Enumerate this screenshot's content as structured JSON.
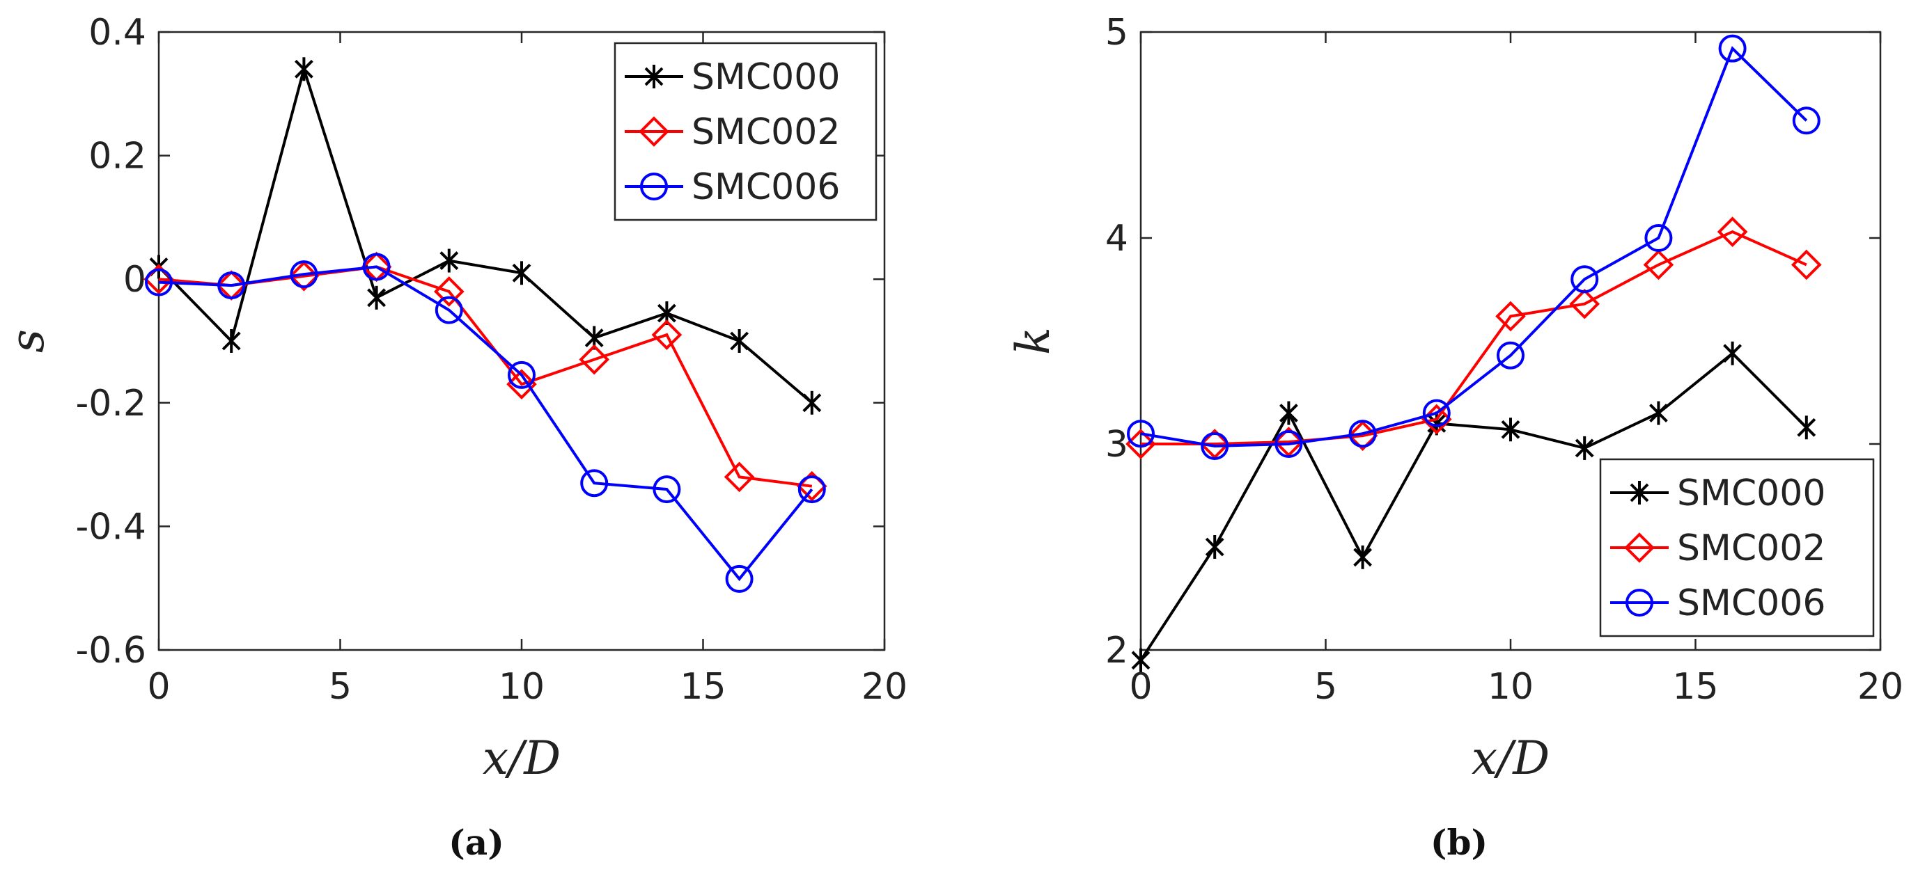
{
  "chart_data": [
    {
      "type": "line",
      "xlabel": "x/D",
      "ylabel": "s",
      "caption": "(a)",
      "xlim": [
        0,
        20
      ],
      "ylim": [
        -0.6,
        0.4
      ],
      "xticks": [
        0,
        5,
        10,
        15,
        20
      ],
      "xtick_labels": [
        "0",
        "5",
        "10",
        "15",
        "20"
      ],
      "yticks": [
        -0.6,
        -0.4,
        -0.2,
        0,
        0.2,
        0.4
      ],
      "ytick_labels": [
        "-0.6",
        "-0.4",
        "-0.2",
        "0",
        "0.2",
        "0.4"
      ],
      "legend_position": "top-right",
      "x": [
        0,
        2,
        4,
        6,
        8,
        10,
        12,
        14,
        16,
        18
      ],
      "series": [
        {
          "name": "SMC000",
          "color": "#000000",
          "marker": "asterisk",
          "values": [
            0.02,
            -0.1,
            0.34,
            -0.03,
            0.03,
            0.01,
            -0.095,
            -0.055,
            -0.1,
            -0.2
          ]
        },
        {
          "name": "SMC002",
          "color": "#ff0000",
          "marker": "diamond",
          "values": [
            0.0,
            -0.01,
            0.005,
            0.02,
            -0.02,
            -0.17,
            -0.13,
            -0.09,
            -0.32,
            -0.335
          ]
        },
        {
          "name": "SMC006",
          "color": "#0000ff",
          "marker": "circle",
          "values": [
            -0.005,
            -0.01,
            0.008,
            0.02,
            -0.05,
            -0.155,
            -0.33,
            -0.34,
            -0.485,
            -0.34
          ]
        }
      ]
    },
    {
      "type": "line",
      "xlabel": "x/D",
      "ylabel": "k",
      "caption": "(b)",
      "xlim": [
        0,
        20
      ],
      "ylim": [
        2,
        5
      ],
      "xticks": [
        0,
        5,
        10,
        15,
        20
      ],
      "xtick_labels": [
        "0",
        "5",
        "10",
        "15",
        "20"
      ],
      "yticks": [
        2,
        3,
        4,
        5
      ],
      "ytick_labels": [
        "2",
        "3",
        "4",
        "5"
      ],
      "legend_position": "bottom-right",
      "x": [
        0,
        2,
        4,
        6,
        8,
        10,
        12,
        14,
        16,
        18
      ],
      "series": [
        {
          "name": "SMC000",
          "color": "#000000",
          "marker": "asterisk",
          "values": [
            1.95,
            2.5,
            3.15,
            2.45,
            3.1,
            3.07,
            2.98,
            3.15,
            3.44,
            3.08
          ]
        },
        {
          "name": "SMC002",
          "color": "#ff0000",
          "marker": "diamond",
          "values": [
            3.0,
            3.0,
            3.01,
            3.04,
            3.12,
            3.62,
            3.68,
            3.87,
            4.03,
            3.87
          ]
        },
        {
          "name": "SMC006",
          "color": "#0000ff",
          "marker": "circle",
          "values": [
            3.05,
            2.99,
            3.0,
            3.05,
            3.15,
            3.43,
            3.8,
            4.0,
            4.92,
            4.57
          ]
        }
      ]
    }
  ]
}
